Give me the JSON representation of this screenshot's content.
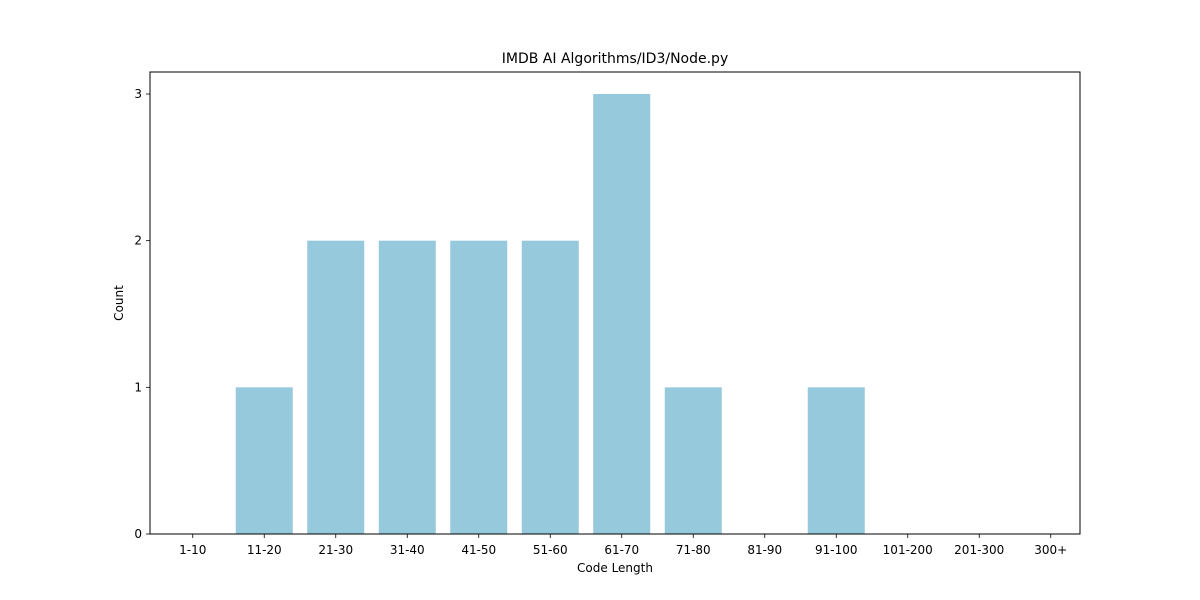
{
  "chart_data": {
    "type": "bar",
    "title": "IMDB AI Algorithms/ID3/Node.py",
    "xlabel": "Code Length",
    "ylabel": "Count",
    "categories": [
      "1-10",
      "11-20",
      "21-30",
      "31-40",
      "41-50",
      "51-60",
      "61-70",
      "71-80",
      "81-90",
      "91-100",
      "101-200",
      "201-300",
      "300+"
    ],
    "values": [
      0,
      1,
      2,
      2,
      2,
      2,
      3,
      1,
      0,
      1,
      0,
      0,
      0
    ],
    "ylim": [
      0,
      3.15
    ],
    "yticks": [
      0,
      1,
      2,
      3
    ],
    "bar_color": "#96c9dc",
    "grid": false,
    "legend": false
  }
}
